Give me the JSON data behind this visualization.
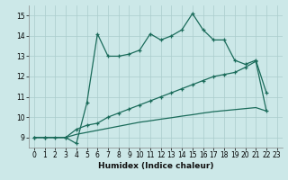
{
  "xlabel": "Humidex (Indice chaleur)",
  "bg_color": "#cce8e8",
  "grid_color": "#aacccc",
  "line_color": "#1a6b5a",
  "xlim": [
    -0.5,
    23.5
  ],
  "ylim": [
    8.5,
    15.5
  ],
  "xticks": [
    0,
    1,
    2,
    3,
    4,
    5,
    6,
    7,
    8,
    9,
    10,
    11,
    12,
    13,
    14,
    15,
    16,
    17,
    18,
    19,
    20,
    21,
    22,
    23
  ],
  "yticks": [
    9,
    10,
    11,
    12,
    13,
    14,
    15
  ],
  "line1_x": [
    0,
    1,
    3,
    4,
    5,
    6,
    7,
    8,
    9,
    10,
    11,
    12,
    13,
    14,
    15,
    16,
    17,
    18,
    19,
    20,
    21,
    22
  ],
  "line1_y": [
    9.0,
    9.0,
    9.0,
    8.7,
    10.7,
    14.1,
    13.0,
    13.0,
    13.1,
    13.3,
    14.1,
    13.8,
    14.0,
    14.3,
    15.1,
    14.3,
    13.8,
    13.8,
    12.8,
    12.6,
    12.8,
    11.2
  ],
  "line2_x": [
    0,
    1,
    2,
    3,
    4,
    5,
    6,
    7,
    8,
    9,
    10,
    11,
    12,
    13,
    14,
    15,
    16,
    17,
    18,
    19,
    20,
    21,
    22
  ],
  "line2_y": [
    9.0,
    9.0,
    9.0,
    9.0,
    9.4,
    9.6,
    9.7,
    10.0,
    10.2,
    10.4,
    10.6,
    10.8,
    11.0,
    11.2,
    11.4,
    11.6,
    11.8,
    12.0,
    12.1,
    12.2,
    12.45,
    12.75,
    10.3
  ],
  "line3_x": [
    0,
    1,
    2,
    3,
    4,
    5,
    6,
    7,
    8,
    9,
    10,
    11,
    12,
    13,
    14,
    15,
    16,
    17,
    18,
    19,
    20,
    21,
    22
  ],
  "line3_y": [
    9.0,
    9.0,
    9.0,
    9.0,
    9.15,
    9.25,
    9.35,
    9.45,
    9.55,
    9.65,
    9.75,
    9.82,
    9.9,
    9.97,
    10.05,
    10.12,
    10.2,
    10.27,
    10.32,
    10.37,
    10.42,
    10.47,
    10.3
  ]
}
